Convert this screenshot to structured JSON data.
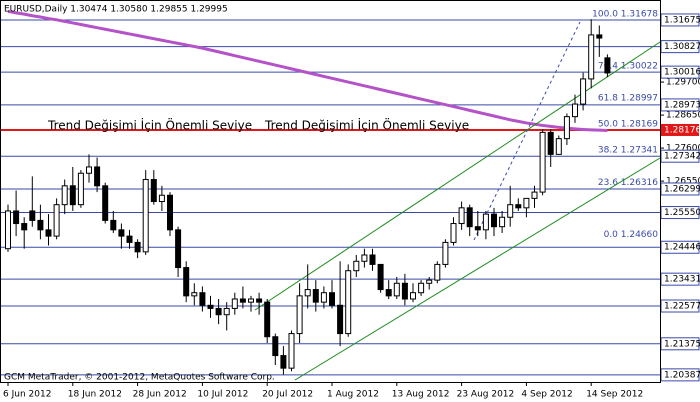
{
  "chart_data": {
    "type": "candlestick",
    "title": "EURUSD,Daily  1.30474 1.30580 1.29855 1.29995",
    "footer": "GCM MetaTrader, © 2001-2012, MetaQuotes Software Corp.",
    "annotations": [
      "Trend Değişimi İçin Önemli Seviye",
      "Trend Değişimi İçin Önemli Seviye"
    ],
    "categories": [
      "6 Jun 2012",
      null,
      null,
      null,
      null,
      null,
      null,
      null,
      "18 Jun 2012",
      null,
      null,
      null,
      null,
      null,
      null,
      null,
      "28 Jun 2012",
      null,
      null,
      null,
      null,
      null,
      null,
      null,
      "10 Jul 2012",
      null,
      null,
      null,
      null,
      null,
      null,
      null,
      "20 Jul 2012",
      null,
      null,
      null,
      null,
      null,
      null,
      null,
      "1 Aug 2012",
      null,
      null,
      null,
      null,
      null,
      null,
      null,
      "13 Aug 2012",
      null,
      null,
      null,
      null,
      null,
      null,
      null,
      "23 Aug 2012",
      null,
      null,
      null,
      null,
      null,
      null,
      null,
      "4 Sep 2012",
      null,
      null,
      null,
      null,
      null,
      null,
      null,
      "14 Sep 2012",
      null,
      null
    ],
    "open": [
      1.244,
      1.256,
      1.252,
      1.256,
      1.253,
      1.25,
      1.248,
      1.258,
      1.264,
      1.258,
      1.268,
      1.27,
      1.264,
      1.253,
      1.25,
      1.248,
      1.246,
      1.243,
      1.266,
      1.259,
      1.261,
      1.25,
      1.238,
      1.229,
      1.23,
      1.226,
      1.225,
      1.223,
      1.225,
      1.228,
      1.227,
      1.228,
      1.227,
      1.216,
      1.21,
      1.206,
      1.217,
      1.229,
      1.231,
      1.227,
      1.23,
      1.226,
      1.217,
      1.237,
      1.24,
      1.242,
      1.239,
      1.231,
      1.229,
      1.233,
      1.228,
      1.23,
      1.233,
      1.234,
      1.239,
      1.246,
      1.252,
      1.257,
      1.251,
      1.25,
      1.255,
      1.251,
      1.254,
      1.258,
      1.257,
      1.26,
      1.262,
      1.281,
      1.274,
      1.279,
      1.286,
      1.29,
      1.298,
      1.312,
      1.3047
    ],
    "high": [
      1.258,
      1.2625,
      1.254,
      1.267,
      1.258,
      1.255,
      1.26,
      1.266,
      1.27,
      1.269,
      1.274,
      1.273,
      1.265,
      1.256,
      1.252,
      1.25,
      1.247,
      1.269,
      1.269,
      1.264,
      1.262,
      1.251,
      1.24,
      1.233,
      1.232,
      1.229,
      1.228,
      1.227,
      1.23,
      1.232,
      1.229,
      1.23,
      1.228,
      1.217,
      1.213,
      1.218,
      1.233,
      1.239,
      1.234,
      1.232,
      1.234,
      1.24,
      1.239,
      1.242,
      1.244,
      1.244,
      1.239,
      1.234,
      1.235,
      1.236,
      1.233,
      1.234,
      1.235,
      1.24,
      1.247,
      1.254,
      1.259,
      1.258,
      1.256,
      1.256,
      1.257,
      1.256,
      1.264,
      1.26,
      1.26,
      1.264,
      1.282,
      1.282,
      1.28,
      1.287,
      1.293,
      1.3,
      1.317,
      1.315,
      1.3058
    ],
    "low": [
      1.243,
      1.248,
      1.244,
      1.251,
      1.247,
      1.245,
      1.247,
      1.255,
      1.256,
      1.257,
      1.265,
      1.262,
      1.252,
      1.249,
      1.244,
      1.244,
      1.241,
      1.242,
      1.258,
      1.256,
      1.248,
      1.235,
      1.227,
      1.226,
      1.224,
      1.222,
      1.22,
      1.218,
      1.223,
      1.225,
      1.224,
      1.223,
      1.214,
      1.207,
      1.204,
      1.205,
      1.214,
      1.225,
      1.224,
      1.225,
      1.225,
      1.213,
      1.216,
      1.235,
      1.238,
      1.237,
      1.23,
      1.228,
      1.228,
      1.226,
      1.227,
      1.229,
      1.231,
      1.233,
      1.238,
      1.245,
      1.25,
      1.248,
      1.248,
      1.247,
      1.248,
      1.249,
      1.251,
      1.256,
      1.254,
      1.257,
      1.261,
      1.27,
      1.274,
      1.277,
      1.284,
      1.288,
      1.295,
      1.305,
      1.2986
    ],
    "close": [
      1.256,
      1.252,
      1.25,
      1.253,
      1.25,
      1.248,
      1.258,
      1.264,
      1.258,
      1.268,
      1.27,
      1.264,
      1.253,
      1.25,
      1.248,
      1.246,
      1.243,
      1.266,
      1.259,
      1.261,
      1.25,
      1.238,
      1.229,
      1.23,
      1.226,
      1.225,
      1.223,
      1.225,
      1.228,
      1.227,
      1.228,
      1.227,
      1.216,
      1.21,
      1.206,
      1.217,
      1.229,
      1.231,
      1.227,
      1.23,
      1.226,
      1.217,
      1.237,
      1.24,
      1.242,
      1.239,
      1.231,
      1.229,
      1.233,
      1.228,
      1.23,
      1.233,
      1.234,
      1.239,
      1.246,
      1.252,
      1.257,
      1.251,
      1.25,
      1.255,
      1.251,
      1.254,
      1.258,
      1.257,
      1.26,
      1.262,
      1.281,
      1.274,
      1.279,
      1.286,
      1.29,
      1.298,
      1.312,
      1.311,
      1.2999
    ],
    "up_color": "#ffffff",
    "down_color": "#000000",
    "overlays": [
      {
        "color": "#b452c8",
        "values": [
          1.3195,
          1.319,
          1.3186,
          1.3181,
          1.3177,
          1.3172,
          1.3168,
          1.3163,
          1.3158,
          1.3153,
          1.3148,
          1.3143,
          1.3138,
          1.3133,
          1.3128,
          1.3123,
          1.3118,
          1.3113,
          1.3108,
          1.3103,
          1.3098,
          1.3093,
          1.3088,
          1.3083,
          1.3078,
          1.3072,
          1.3066,
          1.306,
          1.3054,
          1.3048,
          1.3042,
          1.3036,
          1.303,
          1.3024,
          1.3018,
          1.3012,
          1.3006,
          1.3,
          1.2994,
          1.2988,
          1.2982,
          1.2976,
          1.297,
          1.2964,
          1.2958,
          1.2952,
          1.2946,
          1.294,
          1.2934,
          1.2928,
          1.2922,
          1.2916,
          1.291,
          1.2904,
          1.2898,
          1.2892,
          1.2886,
          1.288,
          1.2874,
          1.2868,
          1.2862,
          1.2856,
          1.285,
          1.2845,
          1.284,
          1.2836,
          1.2832,
          1.2829,
          1.2826,
          1.2823,
          1.2821,
          1.2819,
          1.2818,
          1.2817,
          1.2816
        ]
      }
    ],
    "ylim": [
      1.2016,
      1.3231
    ],
    "yticks": [
      {
        "value": 1.297,
        "label": "1.29700"
      },
      {
        "value": 1.2865,
        "label": "1.28650"
      },
      {
        "value": 1.276,
        "label": "1.27600"
      },
      {
        "value": 1.2655,
        "label": "1.26550"
      }
    ],
    "levels": [
      1.31675,
      1.30827,
      1.30016,
      1.28973,
      1.27342,
      1.26299,
      {
        "value": 1.2555,
        "label": "1.25550"
      },
      1.24446,
      1.23431,
      1.22577,
      1.21375,
      1.20387
    ],
    "level_color": "#3a4aa8",
    "key_level": {
      "value": 1.28176,
      "color": "#e01818"
    },
    "fib": [
      {
        "value": 1.31678,
        "label": "100.0 1.31678"
      },
      {
        "value": 1.30022,
        "label": "76.4 1.30022"
      },
      {
        "value": 1.28997,
        "label": "61.8 1.28997"
      },
      {
        "value": 1.28169,
        "label": "50.0 1.28169"
      },
      {
        "value": 1.27341,
        "label": "38.2 1.27341"
      },
      {
        "value": 1.26316,
        "label": "23.6 1.26316"
      },
      {
        "value": 1.2466,
        "label": "0.0 1.24660"
      }
    ],
    "grid": false
  }
}
